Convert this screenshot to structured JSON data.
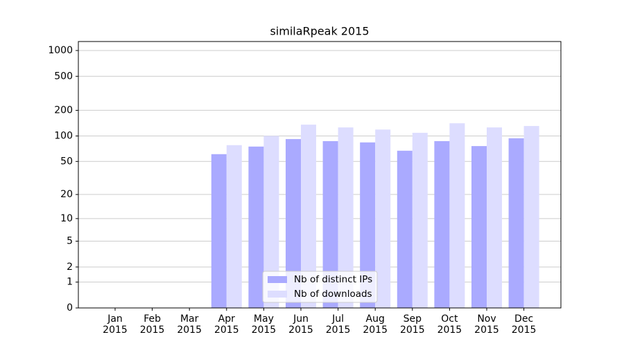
{
  "chart_data": {
    "type": "bar",
    "title": "similaRpeak 2015",
    "categories": [
      "Jan\n2015",
      "Feb\n2015",
      "Mar\n2015",
      "Apr\n2015",
      "May\n2015",
      "Jun\n2015",
      "Jul\n2015",
      "Aug\n2015",
      "Sep\n2015",
      "Oct\n2015",
      "Nov\n2015",
      "Dec\n2015"
    ],
    "series": [
      {
        "name": "Nb of distinct IPs",
        "color": "#aaaaff",
        "values": [
          0,
          0,
          0,
          61,
          75,
          92,
          87,
          84,
          67,
          87,
          76,
          94
        ]
      },
      {
        "name": "Nb of downloads",
        "color": "#ddddff",
        "values": [
          0,
          0,
          0,
          78,
          100,
          136,
          126,
          119,
          109,
          141,
          126,
          131
        ]
      }
    ],
    "yscale": "log1p",
    "ylim": [
      0,
      1273
    ],
    "yticks": [
      0,
      1,
      2,
      5,
      10,
      20,
      50,
      100,
      200,
      500,
      1000
    ],
    "grid": true,
    "legend": "lower center"
  }
}
